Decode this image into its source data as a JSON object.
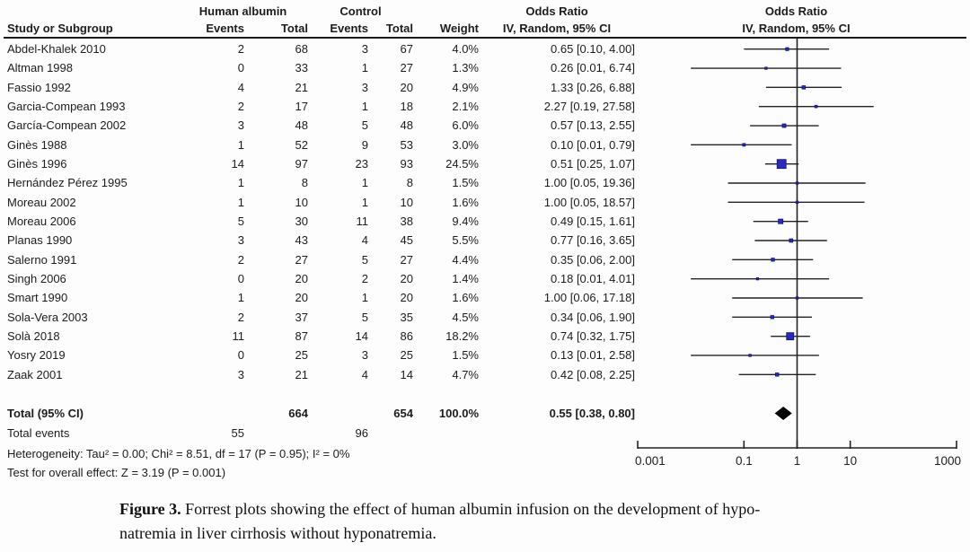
{
  "figure": {
    "caption_label": "Figure 3.",
    "caption_line1": " Forrest plots showing the effect of human albumin infusion on the development of hypo-",
    "caption_line2": "natremia in liver cirrhosis without hyponatremia."
  },
  "header": {
    "group_treatment": "Human albumin",
    "group_control": "Control",
    "odds_ratio": "Odds Ratio",
    "study": "Study or Subgroup",
    "events": "Events",
    "total": "Total",
    "weight": "Weight",
    "method_ci": "IV, Random, 95% CI"
  },
  "chart_data": {
    "type": "forest",
    "x_scale": "log",
    "x_range": [
      0.001,
      1000
    ],
    "x_ticks": [
      0.001,
      0.1,
      1,
      10,
      1000
    ],
    "x_tick_labels": [
      "0.001",
      "0.1",
      "1",
      "10",
      "1000"
    ],
    "ref_line": 1,
    "marker_color": "#2a2ac0",
    "marker_stroke": "#10107e",
    "line_color": "#222222",
    "studies": [
      {
        "name": "Abdel-Khalek 2010",
        "e1": "2",
        "n1": "68",
        "e2": "3",
        "n2": "67",
        "weight": "4.0%",
        "w": 4.0,
        "or": 0.65,
        "lo": 0.1,
        "hi": 4.0,
        "or_ci": "0.65 [0.10, 4.00]"
      },
      {
        "name": "Altman 1998",
        "e1": "0",
        "n1": "33",
        "e2": "1",
        "n2": "27",
        "weight": "1.3%",
        "w": 1.3,
        "or": 0.26,
        "lo": 0.01,
        "hi": 6.74,
        "or_ci": "0.26 [0.01, 6.74]"
      },
      {
        "name": "Fassio 1992",
        "e1": "4",
        "n1": "21",
        "e2": "3",
        "n2": "20",
        "weight": "4.9%",
        "w": 4.9,
        "or": 1.33,
        "lo": 0.26,
        "hi": 6.88,
        "or_ci": "1.33 [0.26, 6.88]"
      },
      {
        "name": "Garcia-Compean 1993",
        "e1": "2",
        "n1": "17",
        "e2": "1",
        "n2": "18",
        "weight": "2.1%",
        "w": 2.1,
        "or": 2.27,
        "lo": 0.19,
        "hi": 27.58,
        "or_ci": "2.27 [0.19, 27.58]"
      },
      {
        "name": "García-Compean 2002",
        "e1": "3",
        "n1": "48",
        "e2": "5",
        "n2": "48",
        "weight": "6.0%",
        "w": 6.0,
        "or": 0.57,
        "lo": 0.13,
        "hi": 2.55,
        "or_ci": "0.57 [0.13, 2.55]"
      },
      {
        "name": "Ginès 1988",
        "e1": "1",
        "n1": "52",
        "e2": "9",
        "n2": "53",
        "weight": "3.0%",
        "w": 3.0,
        "or": 0.1,
        "lo": 0.01,
        "hi": 0.79,
        "or_ci": "0.10 [0.01, 0.79]"
      },
      {
        "name": "Ginès 1996",
        "e1": "14",
        "n1": "97",
        "e2": "23",
        "n2": "93",
        "weight": "24.5%",
        "w": 24.5,
        "or": 0.51,
        "lo": 0.25,
        "hi": 1.07,
        "or_ci": "0.51 [0.25, 1.07]"
      },
      {
        "name": "Hernández Pérez 1995",
        "e1": "1",
        "n1": "8",
        "e2": "1",
        "n2": "8",
        "weight": "1.5%",
        "w": 1.5,
        "or": 1.0,
        "lo": 0.05,
        "hi": 19.36,
        "or_ci": "1.00 [0.05, 19.36]"
      },
      {
        "name": "Moreau 2002",
        "e1": "1",
        "n1": "10",
        "e2": "1",
        "n2": "10",
        "weight": "1.6%",
        "w": 1.6,
        "or": 1.0,
        "lo": 0.05,
        "hi": 18.57,
        "or_ci": "1.00 [0.05, 18.57]"
      },
      {
        "name": "Moreau 2006",
        "e1": "5",
        "n1": "30",
        "e2": "11",
        "n2": "38",
        "weight": "9.4%",
        "w": 9.4,
        "or": 0.49,
        "lo": 0.15,
        "hi": 1.61,
        "or_ci": "0.49 [0.15, 1.61]"
      },
      {
        "name": "Planas 1990",
        "e1": "3",
        "n1": "43",
        "e2": "4",
        "n2": "45",
        "weight": "5.5%",
        "w": 5.5,
        "or": 0.77,
        "lo": 0.16,
        "hi": 3.65,
        "or_ci": "0.77 [0.16, 3.65]"
      },
      {
        "name": "Salerno 1991",
        "e1": "2",
        "n1": "27",
        "e2": "5",
        "n2": "27",
        "weight": "4.4%",
        "w": 4.4,
        "or": 0.35,
        "lo": 0.06,
        "hi": 2.0,
        "or_ci": "0.35 [0.06, 2.00]"
      },
      {
        "name": "Singh 2006",
        "e1": "0",
        "n1": "20",
        "e2": "2",
        "n2": "20",
        "weight": "1.4%",
        "w": 1.4,
        "or": 0.18,
        "lo": 0.01,
        "hi": 4.01,
        "or_ci": "0.18 [0.01, 4.01]"
      },
      {
        "name": "Smart 1990",
        "e1": "1",
        "n1": "20",
        "e2": "1",
        "n2": "20",
        "weight": "1.6%",
        "w": 1.6,
        "or": 1.0,
        "lo": 0.06,
        "hi": 17.18,
        "or_ci": "1.00 [0.06, 17.18]"
      },
      {
        "name": "Sola-Vera 2003",
        "e1": "2",
        "n1": "37",
        "e2": "5",
        "n2": "35",
        "weight": "4.5%",
        "w": 4.5,
        "or": 0.34,
        "lo": 0.06,
        "hi": 1.9,
        "or_ci": "0.34 [0.06, 1.90]"
      },
      {
        "name": "Solà 2018",
        "e1": "11",
        "n1": "87",
        "e2": "14",
        "n2": "86",
        "weight": "18.2%",
        "w": 18.2,
        "or": 0.74,
        "lo": 0.32,
        "hi": 1.75,
        "or_ci": "0.74 [0.32, 1.75]"
      },
      {
        "name": "Yosry 2019",
        "e1": "0",
        "n1": "25",
        "e2": "3",
        "n2": "25",
        "weight": "1.5%",
        "w": 1.5,
        "or": 0.13,
        "lo": 0.01,
        "hi": 2.58,
        "or_ci": "0.13 [0.01, 2.58]"
      },
      {
        "name": "Zaak 2001",
        "e1": "3",
        "n1": "21",
        "e2": "4",
        "n2": "14",
        "weight": "4.7%",
        "w": 4.7,
        "or": 0.42,
        "lo": 0.08,
        "hi": 2.25,
        "or_ci": "0.42 [0.08, 2.25]"
      }
    ],
    "total": {
      "label": "Total (95% CI)",
      "n1": "664",
      "n2": "654",
      "weight": "100.0%",
      "or": 0.55,
      "lo": 0.38,
      "hi": 0.8,
      "or_ci": "0.55 [0.38, 0.80]"
    },
    "total_events": {
      "label": "Total events",
      "e1": "55",
      "e2": "96"
    },
    "heterogeneity": "Heterogeneity: Tau² = 0.00; Chi² = 8.51, df = 17 (P = 0.95); I² = 0%",
    "overall_effect": "Test for overall effect: Z = 3.19 (P = 0.001)"
  }
}
